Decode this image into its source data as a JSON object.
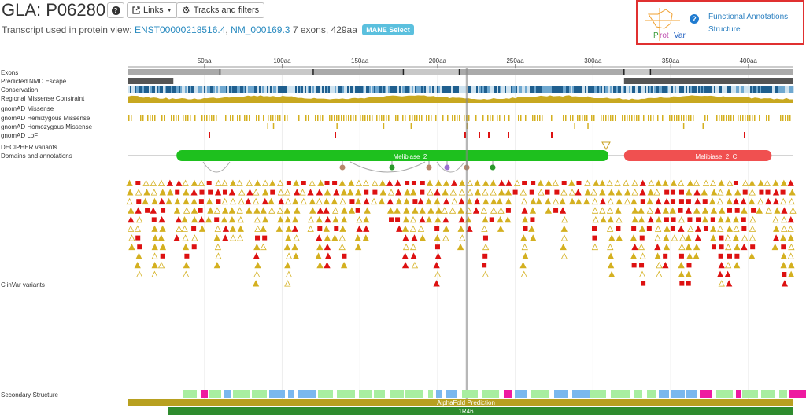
{
  "header": {
    "title": "GLA: P06280",
    "links_label": "Links",
    "tracks_label": "Tracks and filters",
    "transcript_prefix": "Transcript used in protein view:",
    "transcript_ensembl": "ENST00000218516.4",
    "transcript_refseq": "NM_000169.3",
    "transcript_suffix": "7 exons, 429aa",
    "mane_badge": "MANE Select"
  },
  "protvar": {
    "logo_text": "ProtVar",
    "link_functional": "Functional Annotations",
    "link_structure": "Structure"
  },
  "axis": {
    "ticks": [
      "50aa",
      "100aa",
      "150aa",
      "200aa",
      "250aa",
      "300aa",
      "350aa",
      "400aa"
    ]
  },
  "tracks": {
    "exons": "Exons",
    "nmd": "Predicted NMD Escape",
    "conservation": "Conservation",
    "regional": "Regional Missense Constraint",
    "gnomad_missense": "gnomAD Missense",
    "gnomad_hemi": "gnomAD Hemizygous Missense",
    "gnomad_homo": "gnomAD Homozygous Missense",
    "gnomad_lof": "gnomAD LoF",
    "decipher": "DECIPHER variants",
    "domains": "Domains and annotations",
    "clinvar": "ClinVar variants",
    "secondary": "Secondary Structure"
  },
  "domains": {
    "melibiase2": "Melibiase_2",
    "melibiase2c": "Melibiase_2_C"
  },
  "bottom": {
    "alphafold": "AlphaFold Prediction",
    "pdb": "1R46"
  },
  "colors": {
    "domain_green": "#1ec01e",
    "domain_red": "#f05050",
    "clinvar_yellow": "#d4b020",
    "clinvar_red": "#dd1111",
    "clinvar_pink": "#dd33cc",
    "helix_blue": "#7ab8ee",
    "strand_green": "#a8eea0",
    "turn_magenta": "#ee1aa0",
    "alphafold": "#b8a020",
    "pdb": "#2e8b2e"
  }
}
